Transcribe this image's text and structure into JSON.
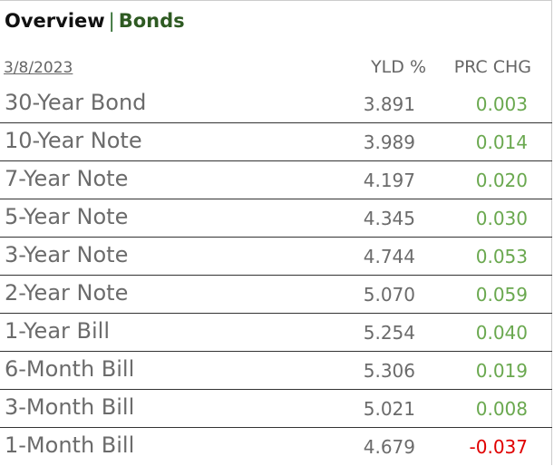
{
  "header": {
    "title": "Overview",
    "separator": "|",
    "section": "Bonds"
  },
  "table": {
    "date": "3/8/2023",
    "columns": [
      "YLD %",
      "PRC CHG"
    ],
    "rows": [
      [
        "30-Year Bond",
        "3.891",
        "0.003"
      ],
      [
        "10-Year Note",
        "3.989",
        "0.014"
      ],
      [
        "7-Year Note",
        "4.197",
        "0.020"
      ],
      [
        "5-Year Note",
        "4.345",
        "0.030"
      ],
      [
        "3-Year Note",
        "4.744",
        "0.053"
      ],
      [
        "2-Year Note",
        "5.070",
        "0.059"
      ],
      [
        "1-Year Bill",
        "5.254",
        "0.040"
      ],
      [
        "6-Month Bill",
        "5.306",
        "0.019"
      ],
      [
        "3-Month Bill",
        "5.021",
        "0.008"
      ],
      [
        "1-Month Bill",
        "4.679",
        "-0.037"
      ]
    ]
  }
}
